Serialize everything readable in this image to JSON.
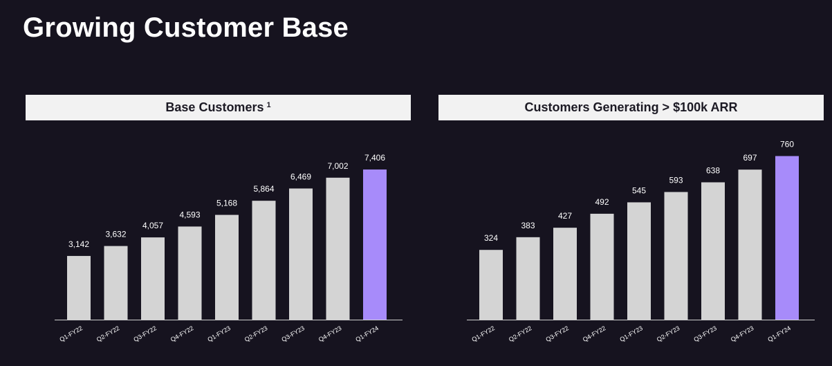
{
  "title": "Growing Customer Base",
  "colors": {
    "background": "#16131f",
    "bar": "#d4d4d4",
    "highlight": "#a78bfa",
    "header_bg": "#f2f2f2"
  },
  "chart_data": [
    {
      "type": "bar",
      "title": "Base Customers",
      "title_footnote": "1",
      "categories": [
        "Q1-FY22",
        "Q2-FY22",
        "Q3-FY22",
        "Q4-FY22",
        "Q1-FY23",
        "Q2-FY23",
        "Q3-FY23",
        "Q4-FY23",
        "Q1-FY24"
      ],
      "values": [
        3142,
        3632,
        4057,
        4593,
        5168,
        5864,
        6469,
        7002,
        7406
      ],
      "value_labels": [
        "3,142",
        "3,632",
        "4,057",
        "4,593",
        "5,168",
        "5,864",
        "6,469",
        "7,002",
        "7,406"
      ],
      "highlight_index": 8,
      "ylim": [
        0,
        8600
      ],
      "grid": false,
      "xlabel": "",
      "ylabel": ""
    },
    {
      "type": "bar",
      "title": "Customers Generating > $100k ARR",
      "title_footnote": "",
      "categories": [
        "Q1-FY22",
        "Q2-FY22",
        "Q3-FY22",
        "Q4-FY22",
        "Q1-FY23",
        "Q2-FY23",
        "Q3-FY23",
        "Q4-FY23",
        "Q1-FY24"
      ],
      "values": [
        324,
        383,
        427,
        492,
        545,
        593,
        638,
        697,
        760
      ],
      "value_labels": [
        "324",
        "383",
        "427",
        "492",
        "545",
        "593",
        "638",
        "697",
        "760"
      ],
      "highlight_index": 8,
      "ylim": [
        0,
        810
      ],
      "grid": false,
      "xlabel": "",
      "ylabel": ""
    }
  ]
}
